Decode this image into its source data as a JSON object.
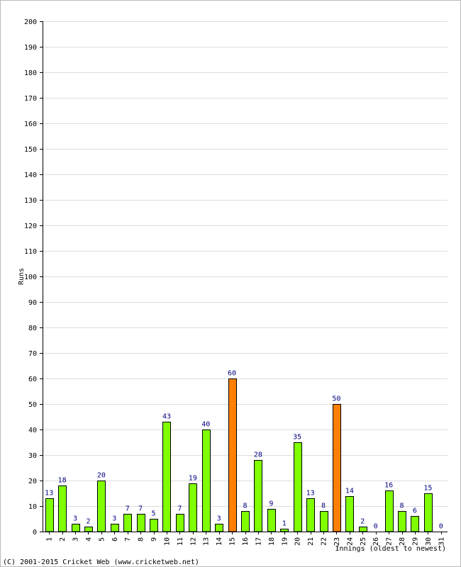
{
  "chart_data": {
    "type": "bar",
    "title": "",
    "ylabel": "Runs",
    "xlabel": "Innings (oldest to newest)",
    "ylim": [
      0,
      200
    ],
    "y_tick_step": 10,
    "grid": true,
    "categories": [
      "1",
      "2",
      "3",
      "4",
      "5",
      "6",
      "7",
      "8",
      "9",
      "10",
      "11",
      "12",
      "13",
      "14",
      "15",
      "16",
      "17",
      "18",
      "19",
      "20",
      "21",
      "22",
      "23",
      "24",
      "25",
      "26",
      "27",
      "28",
      "29",
      "30",
      "31"
    ],
    "values": [
      13,
      18,
      3,
      2,
      20,
      3,
      7,
      7,
      5,
      43,
      7,
      19,
      40,
      3,
      60,
      8,
      28,
      9,
      1,
      35,
      13,
      8,
      50,
      14,
      2,
      0,
      16,
      8,
      6,
      15,
      0
    ],
    "highlight_threshold": 50,
    "colors": {
      "bar": "#80ff00",
      "bar_highlight": "#ff8000",
      "bar_outline": "#000000",
      "value_label": "#000080",
      "grid": "#dddddd",
      "axis": "#000000",
      "frame": "#bbbbbb"
    }
  },
  "footer": {
    "copyright": "(C) 2001-2015 Cricket Web (www.cricketweb.net)"
  }
}
